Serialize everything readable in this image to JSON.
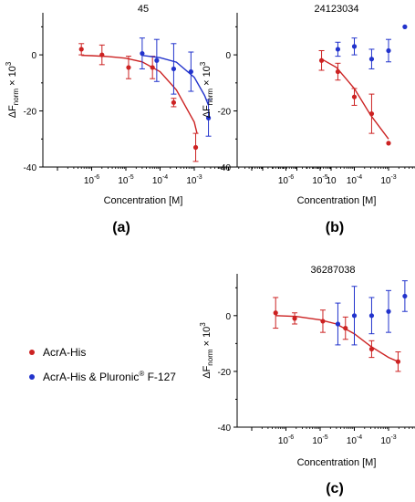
{
  "colors": {
    "red": "#cc2222",
    "blue": "#2233cc",
    "axis": "#000000"
  },
  "legend": [
    {
      "label": "AcrA-His",
      "color": "#cc2222"
    },
    {
      "label": "AcrA-His & Pluronic",
      "sup": "®",
      "tail": " F-127",
      "color": "#2233cc"
    }
  ],
  "chart_data": [
    {
      "type": "scatter",
      "panel_label": "(a)",
      "title": "45",
      "xlabel": "Concentration [M]",
      "ylabel": {
        "prefix": "ΔF",
        "sub": "norm",
        "suffix": " × 10",
        "sup": "3"
      },
      "x_scale": "log",
      "xlim": [
        1e-07,
        10
      ],
      "ylim": [
        -40,
        15
      ],
      "xticks": [
        {
          "v": 1e-06,
          "base": "10",
          "exp": "-6"
        },
        {
          "v": 1e-05,
          "base": "10",
          "exp": "-5"
        },
        {
          "v": 0.0001,
          "base": "10",
          "exp": "-4"
        },
        {
          "v": 0.001,
          "base": "10",
          "exp": "-3"
        },
        {
          "v": 10,
          "base": "10",
          "exp": ""
        }
      ],
      "yticks": [
        0,
        -20,
        -40
      ],
      "series": [
        {
          "name": "AcrA-His",
          "color": "#cc2222",
          "points": [
            {
              "x": 5e-07,
              "y": 2.0,
              "err": 2.0
            },
            {
              "x": 2e-06,
              "y": 0.0,
              "err": 3.5
            },
            {
              "x": 1.2e-05,
              "y": -4.5,
              "err": 4.0
            },
            {
              "x": 6e-05,
              "y": -4.5,
              "err": 4.0
            },
            {
              "x": 0.00025,
              "y": -17.0,
              "err": 1.5
            },
            {
              "x": 0.0011,
              "y": -33.0,
              "err": 5.0
            }
          ],
          "fit": [
            [
              5e-07,
              -0.2
            ],
            [
              1e-06,
              -0.3
            ],
            [
              3e-06,
              -0.6
            ],
            [
              1e-05,
              -1.2
            ],
            [
              3e-05,
              -2.5
            ],
            [
              0.0001,
              -6.0
            ],
            [
              0.0003,
              -12.5
            ],
            [
              0.001,
              -24.0
            ],
            [
              0.0012,
              -28.0
            ]
          ]
        },
        {
          "name": "AcrA-His & Pluronic F-127",
          "color": "#2233cc",
          "points": [
            {
              "x": 3e-05,
              "y": 0.5,
              "err": 5.5
            },
            {
              "x": 8e-05,
              "y": -2.0,
              "err": 7.5
            },
            {
              "x": 0.00025,
              "y": -5.0,
              "err": 9.0
            },
            {
              "x": 0.0008,
              "y": -6.0,
              "err": 7.0
            },
            {
              "x": 0.0026,
              "y": -22.5,
              "err": 6.5
            }
          ],
          "fit": [
            [
              3e-05,
              -0.2
            ],
            [
              0.0001,
              -1.0
            ],
            [
              0.0003,
              -2.6
            ],
            [
              0.001,
              -8.0
            ],
            [
              0.002,
              -14.5
            ],
            [
              0.0026,
              -18.0
            ]
          ]
        }
      ]
    },
    {
      "type": "scatter",
      "panel_label": "(b)",
      "title": "24123034",
      "xlabel": "Concentration [M]",
      "ylabel": {
        "prefix": "ΔF",
        "sub": "norm",
        "suffix": " × 10",
        "sup": "3"
      },
      "x_scale": "log",
      "xlim": [
        1e-07,
        10
      ],
      "ylim": [
        -40,
        15
      ],
      "xticks": [
        {
          "v": 1e-06,
          "base": "10",
          "exp": "-6"
        },
        {
          "v": 1e-05,
          "base": "10",
          "exp": "-5"
        },
        {
          "v": 0.0001,
          "base": "10",
          "exp": "-4"
        },
        {
          "v": 0.001,
          "base": "10",
          "exp": "-3"
        },
        {
          "v": 10,
          "base": "10",
          "exp": ""
        }
      ],
      "yticks": [
        0,
        -20,
        -40
      ],
      "series": [
        {
          "name": "AcrA-His",
          "color": "#cc2222",
          "points": [
            {
              "x": 1.1e-05,
              "y": -2.0,
              "err": 3.5
            },
            {
              "x": 3.3e-05,
              "y": -6.0,
              "err": 3.0
            },
            {
              "x": 0.0001,
              "y": -15.0,
              "err": 3.0
            },
            {
              "x": 0.00032,
              "y": -21.0,
              "err": 7.0
            },
            {
              "x": 0.001,
              "y": -31.5,
              "err": 0
            }
          ],
          "fit": [
            [
              1.1e-05,
              -1.5
            ],
            [
              3e-05,
              -4.5
            ],
            [
              0.0001,
              -12.0
            ],
            [
              0.0003,
              -21.5
            ],
            [
              0.001,
              -30.0
            ]
          ]
        },
        {
          "name": "AcrA-His & Pluronic F-127",
          "color": "#2233cc",
          "points": [
            {
              "x": 3.3e-05,
              "y": 2.0,
              "err": 2.5
            },
            {
              "x": 0.0001,
              "y": 3.0,
              "err": 3.0
            },
            {
              "x": 0.00032,
              "y": -1.5,
              "err": 3.5
            },
            {
              "x": 0.001,
              "y": 1.5,
              "err": 4.0
            },
            {
              "x": 0.003,
              "y": 10.0,
              "err": 0
            }
          ],
          "fit": []
        }
      ]
    },
    {
      "type": "scatter",
      "panel_label": "(c)",
      "title": "36287038",
      "xlabel": "Concentration [M]",
      "ylabel": {
        "prefix": "ΔF",
        "sub": "norm",
        "suffix": " × 10",
        "sup": "3"
      },
      "x_scale": "log",
      "xlim": [
        1e-07,
        10
      ],
      "ylim": [
        -40,
        15
      ],
      "xticks": [
        {
          "v": 1e-06,
          "base": "10",
          "exp": "-6"
        },
        {
          "v": 1e-05,
          "base": "10",
          "exp": "-5"
        },
        {
          "v": 0.0001,
          "base": "10",
          "exp": "-4"
        },
        {
          "v": 0.001,
          "base": "10",
          "exp": "-3"
        },
        {
          "v": 10,
          "base": "10",
          "exp": ""
        }
      ],
      "yticks": [
        0,
        -20,
        -40
      ],
      "series": [
        {
          "name": "AcrA-His",
          "color": "#cc2222",
          "points": [
            {
              "x": 5e-07,
              "y": 1.0,
              "err": 5.5
            },
            {
              "x": 1.8e-06,
              "y": -1.0,
              "err": 2.0
            },
            {
              "x": 1.2e-05,
              "y": -2.0,
              "err": 4.0
            },
            {
              "x": 5.5e-05,
              "y": -4.5,
              "err": 4.0
            },
            {
              "x": 0.00032,
              "y": -12.0,
              "err": 3.0
            },
            {
              "x": 0.0019,
              "y": -16.5,
              "err": 3.5
            }
          ],
          "fit": [
            [
              5e-07,
              0.0
            ],
            [
              2e-06,
              -0.3
            ],
            [
              1e-05,
              -1.5
            ],
            [
              3e-05,
              -3.0
            ],
            [
              0.0001,
              -6.5
            ],
            [
              0.0003,
              -11.0
            ],
            [
              0.001,
              -15.0
            ],
            [
              0.0019,
              -16.5
            ]
          ]
        },
        {
          "name": "AcrA-His & Pluronic F-127",
          "color": "#2233cc",
          "points": [
            {
              "x": 3.3e-05,
              "y": -3.0,
              "err": 7.5
            },
            {
              "x": 0.0001,
              "y": 0.0,
              "err": 10.5
            },
            {
              "x": 0.00032,
              "y": 0.0,
              "err": 6.5
            },
            {
              "x": 0.001,
              "y": 1.5,
              "err": 7.5
            },
            {
              "x": 0.003,
              "y": 7.0,
              "err": 5.5
            }
          ],
          "fit": []
        }
      ]
    }
  ]
}
